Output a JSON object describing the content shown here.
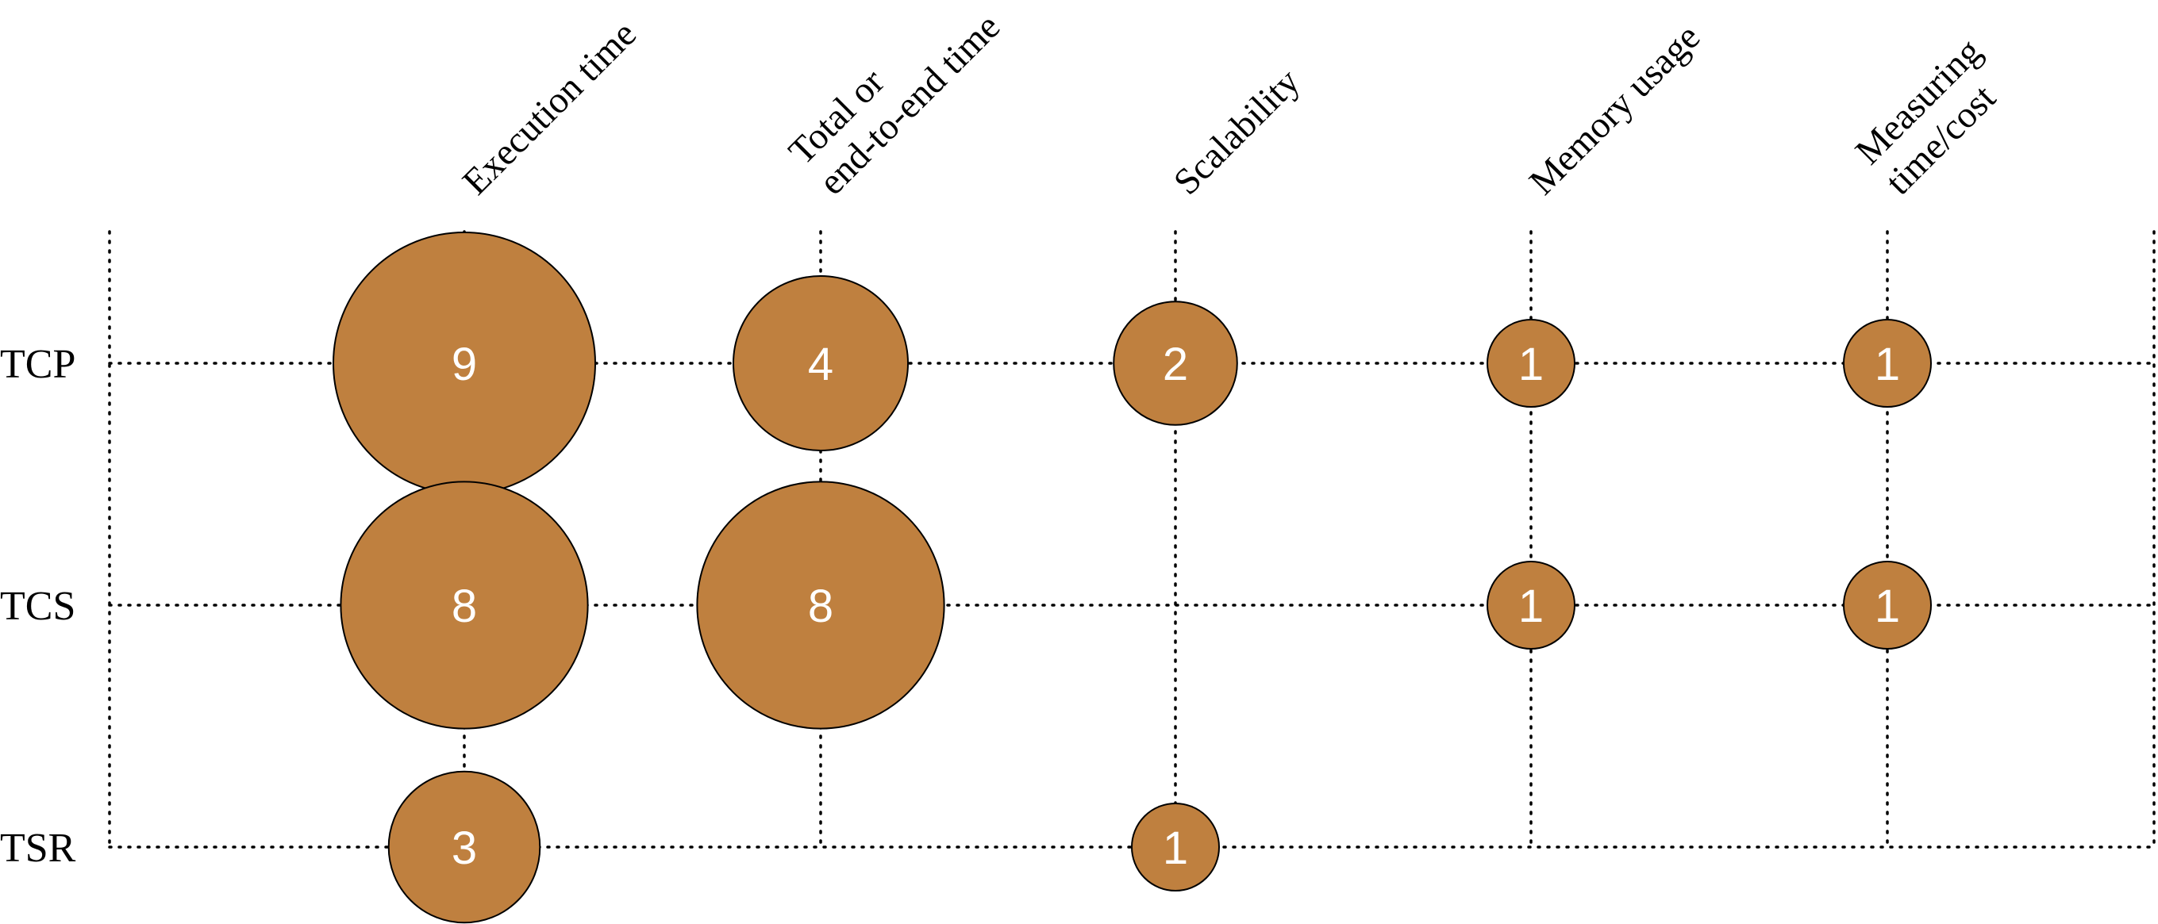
{
  "colors": {
    "bubble": "#BF803F",
    "bubble_text": "#ffffff",
    "grid": "#000000",
    "text": "#000000"
  },
  "chart_data": {
    "type": "bubble",
    "title": "",
    "columns": [
      [
        "Execution time"
      ],
      [
        "Total or",
        "end-to-end time"
      ],
      [
        "Scalability"
      ],
      [
        "Memory usage"
      ],
      [
        "Measuring",
        "time/cost"
      ]
    ],
    "rows": [
      "TCP",
      "TCS",
      "TSR"
    ],
    "values": [
      [
        9,
        4,
        2,
        1,
        1
      ],
      [
        8,
        8,
        null,
        1,
        1
      ],
      [
        3,
        null,
        1,
        null,
        null
      ]
    ],
    "grid": true,
    "grid_style": "dotted"
  }
}
